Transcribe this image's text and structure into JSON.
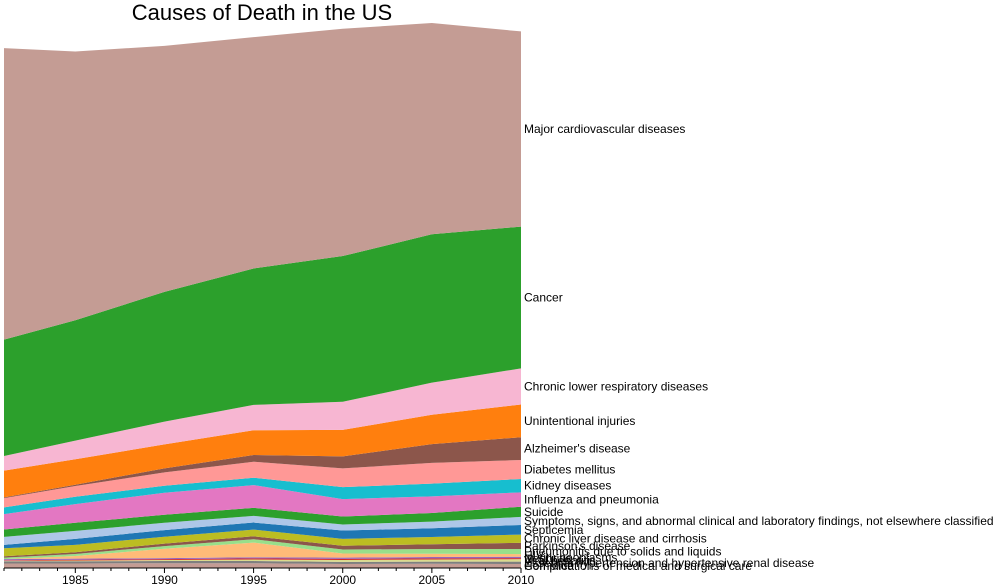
{
  "chart_data": {
    "type": "area",
    "stacked": true,
    "title": "Causes of Death in the US",
    "xlabel": "",
    "ylabel": "",
    "x": [
      1981,
      1985,
      1990,
      1995,
      2000,
      2005,
      2010
    ],
    "x_ticks": [
      1985,
      1990,
      1995,
      2000,
      2005,
      2010
    ],
    "xlim": [
      1981,
      2010
    ],
    "legend_placement": "inline-right",
    "grid": false,
    "series": [
      {
        "name": "Complications of medical and surgical care",
        "color": "#9edae5",
        "values": [
          0.4,
          0.4,
          0.4,
          0.4,
          0.4,
          0.4,
          0.4
        ]
      },
      {
        "name": "Homicide",
        "color": "#c49c94",
        "values": [
          3.0,
          3.0,
          3.2,
          3.2,
          2.6,
          2.8,
          2.6
        ]
      },
      {
        "name": "Essential hypertension and hypertensive renal disease",
        "color": "#7f7f7f",
        "values": [
          1.6,
          1.6,
          1.6,
          1.6,
          1.6,
          1.6,
          1.8
        ]
      },
      {
        "name": "Viral hepatitis",
        "color": "#dbdb8d",
        "values": [
          0.4,
          0.6,
          0.8,
          1.2,
          1.4,
          1.6,
          1.8
        ]
      },
      {
        "name": "Nephritis",
        "color": "#d62728",
        "values": [
          0.4,
          0.6,
          0.6,
          0.8,
          0.8,
          0.8,
          0.8
        ]
      },
      {
        "name": "In situ neoplasms",
        "color": "#9467bd",
        "values": [
          0.8,
          0.8,
          0.8,
          0.8,
          1.0,
          1.0,
          1.0
        ]
      },
      {
        "name": "HIV",
        "color": "#ffbb78",
        "values": [
          0.0,
          2.0,
          7.0,
          11.0,
          3.0,
          2.5,
          2.0
        ]
      },
      {
        "name": "Pneumonitis due to solids and liquids",
        "color": "#98df8a",
        "values": [
          1.2,
          1.5,
          2.0,
          2.5,
          3.0,
          3.5,
          3.8
        ]
      },
      {
        "name": "Parkinson's disease",
        "color": "#8c564b",
        "values": [
          1.0,
          1.3,
          1.8,
          2.2,
          2.8,
          3.6,
          4.6
        ]
      },
      {
        "name": "Chronic liver disease and cirrhosis",
        "color": "#bcbd22",
        "values": [
          6.0,
          5.5,
          5.2,
          5.0,
          5.2,
          5.4,
          6.2
        ]
      },
      {
        "name": "Septicemia",
        "color": "#1f77b4",
        "values": [
          2.5,
          4.5,
          4.9,
          5.3,
          6.2,
          6.5,
          7.2
        ]
      },
      {
        "name": "Symptoms, signs, and abnormal clinical and laboratory findings, not elsewhere classified",
        "color": "#aec7e8",
        "values": [
          6.0,
          6.0,
          5.5,
          5.0,
          4.5,
          5.0,
          6.0
        ]
      },
      {
        "name": "Suicide",
        "color": "#2ca02c",
        "values": [
          5.5,
          6.0,
          6.0,
          6.0,
          6.0,
          6.4,
          7.6
        ]
      },
      {
        "name": "Influenza and pneumonia",
        "color": "#e377c2",
        "values": [
          11.5,
          14.0,
          16.5,
          17.0,
          13.0,
          12.5,
          10.8
        ]
      },
      {
        "name": "Kidney diseases",
        "color": "#17becf",
        "values": [
          5.0,
          5.5,
          5.2,
          5.5,
          9.0,
          9.5,
          10.0
        ]
      },
      {
        "name": "Diabetes mellitus",
        "color": "#ff9896",
        "values": [
          7.0,
          8.0,
          10.0,
          12.0,
          14.0,
          15.5,
          14.2
        ]
      },
      {
        "name": "Alzheimer's disease",
        "color": "#8c564b",
        "values": [
          0.5,
          1.0,
          3.0,
          5.0,
          9.0,
          14.0,
          17.0
        ]
      },
      {
        "name": "Unintentional injuries",
        "color": "#ff7f0e",
        "values": [
          20.0,
          19.0,
          18.0,
          18.5,
          19.8,
          22.0,
          24.5
        ]
      },
      {
        "name": "Chronic lower respiratory diseases",
        "color": "#f7b6d2",
        "values": [
          11.0,
          14.0,
          17.0,
          19.0,
          21.0,
          24.0,
          27.0
        ]
      },
      {
        "name": "Cancer",
        "color": "#2ca02c",
        "values": [
          87.0,
          90.0,
          97.0,
          102.0,
          109.0,
          111.0,
          106.0
        ]
      },
      {
        "name": "Major cardiovascular diseases",
        "color": "#c49c94",
        "values": [
          218.0,
          201.0,
          184.0,
          173.0,
          170.0,
          158.0,
          146.0
        ]
      }
    ]
  }
}
